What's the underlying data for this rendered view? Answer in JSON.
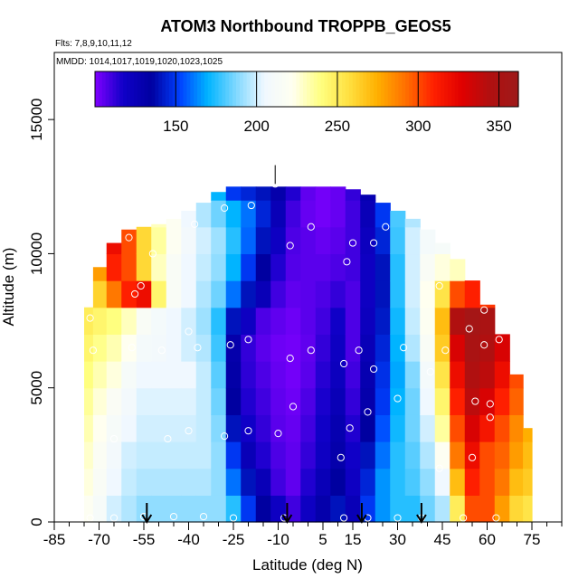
{
  "chart_data": {
    "type": "heatmap",
    "title": "ATOM3 Northbound TROPPB_GEOS5",
    "flights_note": "Flts: 7,8,9,10,11,12",
    "mmdd_note": "MMDD: 1014,1017,1019,1020,1023,1025",
    "xlabel": "Latitude (deg N)",
    "ylabel": "Altitude (m)",
    "xlim": [
      -85,
      85
    ],
    "ylim": [
      0,
      17500
    ],
    "x_tick_labels": [
      "-85",
      "-70",
      "-55",
      "-40",
      "-25",
      "-10",
      "5",
      "15",
      "30",
      "45",
      "60",
      "75"
    ],
    "x_ticks": [
      -85,
      -70,
      -55,
      -40,
      -25,
      -10,
      5,
      15,
      30,
      45,
      60,
      75
    ],
    "y_ticks": [
      0,
      5000,
      10000,
      15000
    ],
    "y_tick_labels": [
      "0",
      "5000",
      "10000",
      "15000"
    ],
    "colorbar": {
      "range": [
        100,
        362
      ],
      "ticks": [
        150,
        200,
        250,
        300,
        350
      ],
      "tick_labels": [
        "150",
        "200",
        "250",
        "300",
        "350"
      ],
      "colors": [
        "#8000ff",
        "#1000c8",
        "#0000a0",
        "#0040ff",
        "#00b4ff",
        "#80d8ff",
        "#f0f8ff",
        "#fffff0",
        "#ffff80",
        "#ffe040",
        "#ffb000",
        "#ff7000",
        "#ff2000",
        "#e00000",
        "#b01010",
        "#9e1a1a"
      ]
    },
    "grid": "off",
    "legend": "top (colorbar)",
    "latitude_columns": [
      -74,
      -70,
      -65,
      -60,
      -55,
      -50,
      -45,
      -40,
      -35,
      -30,
      -25,
      -20,
      -15,
      -10,
      -5,
      0,
      5,
      10,
      15,
      20,
      25,
      30,
      35,
      40,
      45,
      50,
      55,
      60,
      65,
      70,
      74
    ],
    "column_top_altitudes": [
      8000,
      9500,
      10400,
      10900,
      11000,
      11100,
      11300,
      11600,
      11900,
      12300,
      12500,
      12500,
      12500,
      12500,
      12500,
      12500,
      12500,
      12500,
      12400,
      12200,
      11900,
      11600,
      11300,
      10900,
      10400,
      9800,
      9000,
      8100,
      7000,
      5500,
      3500
    ],
    "altitude_rows": [
      0,
      1000,
      2000,
      3000,
      4000,
      5000,
      6000,
      7000,
      8000,
      9000,
      10000,
      11000,
      12000
    ],
    "values": [
      [
        220,
        212,
        200,
        195,
        190,
        190,
        190,
        190,
        190,
        190,
        175,
        150,
        135,
        120,
        110,
        120,
        130,
        140,
        125,
        150,
        165,
        175,
        175,
        185,
        195,
        250,
        300,
        300,
        280,
        260,
        255
      ],
      [
        225,
        215,
        205,
        198,
        195,
        195,
        195,
        195,
        195,
        190,
        160,
        140,
        125,
        110,
        105,
        115,
        125,
        135,
        120,
        145,
        165,
        175,
        180,
        190,
        205,
        270,
        310,
        300,
        290,
        270,
        265
      ],
      [
        228,
        218,
        208,
        200,
        198,
        198,
        198,
        198,
        198,
        190,
        150,
        125,
        115,
        108,
        105,
        112,
        120,
        130,
        118,
        140,
        160,
        175,
        182,
        195,
        220,
        290,
        320,
        300,
        295,
        280,
        270
      ],
      [
        232,
        222,
        212,
        205,
        200,
        200,
        200,
        200,
        198,
        188,
        140,
        118,
        112,
        106,
        104,
        110,
        118,
        128,
        115,
        135,
        155,
        172,
        185,
        200,
        235,
        300,
        330,
        315,
        300,
        285,
        275
      ],
      [
        236,
        226,
        216,
        208,
        202,
        202,
        202,
        202,
        198,
        185,
        135,
        115,
        110,
        105,
        103,
        108,
        116,
        125,
        112,
        130,
        150,
        170,
        185,
        205,
        245,
        310,
        340,
        330,
        310,
        295,
        280
      ],
      [
        240,
        232,
        225,
        212,
        205,
        205,
        205,
        205,
        198,
        182,
        132,
        113,
        108,
        104,
        102,
        106,
        114,
        122,
        110,
        128,
        148,
        168,
        188,
        210,
        255,
        320,
        345,
        340,
        320,
        300,
        290
      ],
      [
        245,
        238,
        232,
        222,
        210,
        208,
        205,
        200,
        195,
        178,
        130,
        112,
        106,
        103,
        102,
        105,
        112,
        120,
        108,
        125,
        145,
        170,
        195,
        215,
        265,
        330,
        350,
        345,
        330,
        310,
        300
      ],
      [
        250,
        245,
        240,
        230,
        215,
        210,
        205,
        200,
        192,
        175,
        140,
        120,
        108,
        105,
        103,
        106,
        110,
        118,
        108,
        122,
        142,
        172,
        198,
        220,
        270,
        345,
        355,
        350,
        340,
        320,
        310
      ],
      [
        255,
        262,
        290,
        310,
        320,
        245,
        215,
        205,
        195,
        185,
        160,
        140,
        125,
        110,
        105,
        106,
        108,
        112,
        108,
        120,
        140,
        175,
        200,
        222,
        255,
        300,
        310,
        305,
        290,
        280,
        270
      ],
      [
        258,
        280,
        310,
        300,
        260,
        230,
        215,
        205,
        198,
        190,
        170,
        150,
        135,
        115,
        107,
        106,
        106,
        108,
        110,
        120,
        140,
        175,
        200,
        215,
        225,
        230,
        235,
        235,
        230,
        230,
        225
      ],
      [
        258,
        290,
        320,
        300,
        260,
        235,
        220,
        208,
        200,
        192,
        175,
        158,
        140,
        120,
        108,
        106,
        104,
        106,
        110,
        122,
        145,
        178,
        200,
        210,
        212,
        215,
        215,
        215,
        215,
        215,
        215
      ],
      [
        258,
        280,
        275,
        255,
        240,
        230,
        220,
        205,
        195,
        185,
        170,
        160,
        145,
        125,
        110,
        104,
        102,
        104,
        110,
        125,
        150,
        180,
        195,
        200,
        200,
        205,
        205,
        205,
        205,
        205,
        205
      ],
      [
        250,
        250,
        250,
        245,
        230,
        220,
        210,
        200,
        185,
        170,
        150,
        145,
        140,
        130,
        115,
        105,
        102,
        104,
        112,
        128,
        155,
        175,
        185,
        190,
        195,
        200,
        200,
        200,
        200,
        200,
        200
      ]
    ],
    "points": [
      {
        "lat": -73,
        "alt": 150
      },
      {
        "lat": -65,
        "alt": 150
      },
      {
        "lat": -55,
        "alt": 200
      },
      {
        "lat": -45,
        "alt": 200
      },
      {
        "lat": -35,
        "alt": 200
      },
      {
        "lat": -25,
        "alt": 150
      },
      {
        "lat": -8,
        "alt": 150
      },
      {
        "lat": 12,
        "alt": 150
      },
      {
        "lat": 20,
        "alt": 150
      },
      {
        "lat": 30,
        "alt": 150
      },
      {
        "lat": 38,
        "alt": 150
      },
      {
        "lat": 52,
        "alt": 150
      },
      {
        "lat": 63,
        "alt": 150
      },
      {
        "lat": -65,
        "alt": 3100
      },
      {
        "lat": -47,
        "alt": 3100
      },
      {
        "lat": -40,
        "alt": 3400
      },
      {
        "lat": -28,
        "alt": 3200
      },
      {
        "lat": -20,
        "alt": 3400
      },
      {
        "lat": -10,
        "alt": 3300
      },
      {
        "lat": 14,
        "alt": 3500
      },
      {
        "lat": 11,
        "alt": 2400
      },
      {
        "lat": 44,
        "alt": 2000
      },
      {
        "lat": 55,
        "alt": 2400
      },
      {
        "lat": 61,
        "alt": 3900
      },
      {
        "lat": -5,
        "alt": 4300
      },
      {
        "lat": 20,
        "alt": 4100
      },
      {
        "lat": 30,
        "alt": 4600
      },
      {
        "lat": 56,
        "alt": 4500
      },
      {
        "lat": 61,
        "alt": 4400
      },
      {
        "lat": -82,
        "alt": 5400
      },
      {
        "lat": -72,
        "alt": 6400
      },
      {
        "lat": -59,
        "alt": 6500
      },
      {
        "lat": -49,
        "alt": 6400
      },
      {
        "lat": -37,
        "alt": 6500
      },
      {
        "lat": -26,
        "alt": 6600
      },
      {
        "lat": -20,
        "alt": 6800
      },
      {
        "lat": -6,
        "alt": 6100
      },
      {
        "lat": 1,
        "alt": 6400
      },
      {
        "lat": 12,
        "alt": 5900
      },
      {
        "lat": 17,
        "alt": 6400
      },
      {
        "lat": 22,
        "alt": 5700
      },
      {
        "lat": 32,
        "alt": 6500
      },
      {
        "lat": 41,
        "alt": 5600
      },
      {
        "lat": 46,
        "alt": 6400
      },
      {
        "lat": 54,
        "alt": 7200
      },
      {
        "lat": 59,
        "alt": 6600
      },
      {
        "lat": 64,
        "alt": 6800
      },
      {
        "lat": -40,
        "alt": 7100
      },
      {
        "lat": -73,
        "alt": 7600
      },
      {
        "lat": -56,
        "alt": 8800
      },
      {
        "lat": -58,
        "alt": 8500
      },
      {
        "lat": 44,
        "alt": 8800
      },
      {
        "lat": 59,
        "alt": 7900
      },
      {
        "lat": -60,
        "alt": 10600
      },
      {
        "lat": -52,
        "alt": 10000
      },
      {
        "lat": -38,
        "alt": 11100
      },
      {
        "lat": -6,
        "alt": 10300
      },
      {
        "lat": 1,
        "alt": 11000
      },
      {
        "lat": 13,
        "alt": 9700
      },
      {
        "lat": 15,
        "alt": 10400
      },
      {
        "lat": 22,
        "alt": 10400
      },
      {
        "lat": 26,
        "alt": 11000
      },
      {
        "lat": 37,
        "alt": 11500
      },
      {
        "lat": -28,
        "alt": 11700
      },
      {
        "lat": -19,
        "alt": 11800
      },
      {
        "lat": -11,
        "alt": 12600
      }
    ],
    "arrows_at_latitude": [
      -54,
      -7,
      18,
      38
    ]
  }
}
